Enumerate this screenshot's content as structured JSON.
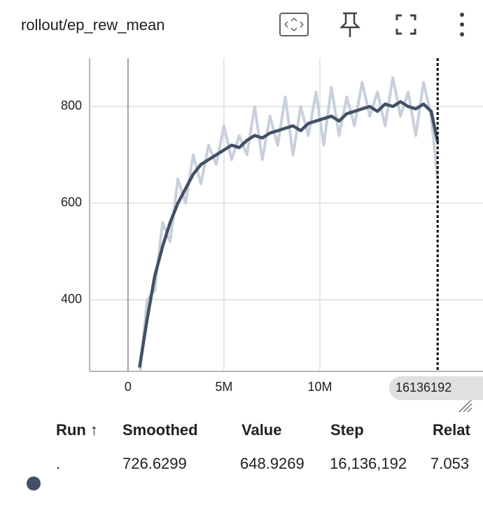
{
  "title": "rollout/ep_rew_mean",
  "chart_data": {
    "type": "line",
    "x": [
      600000,
      1000000,
      1400000,
      1800000,
      2200000,
      2600000,
      3000000,
      3400000,
      3800000,
      4200000,
      4600000,
      5000000,
      5400000,
      5800000,
      6200000,
      6600000,
      7000000,
      7400000,
      7800000,
      8200000,
      8600000,
      9000000,
      9400000,
      9800000,
      10200000,
      10600000,
      11000000,
      11400000,
      11800000,
      12200000,
      12600000,
      13000000,
      13400000,
      13800000,
      14200000,
      14600000,
      15000000,
      15400000,
      15800000,
      16136192
    ],
    "series": [
      {
        "color": "#c9d0dc",
        "values": [
          240,
          400,
          420,
          560,
          520,
          650,
          600,
          700,
          640,
          720,
          680,
          760,
          690,
          740,
          700,
          800,
          690,
          780,
          720,
          820,
          700,
          800,
          740,
          830,
          720,
          840,
          740,
          820,
          760,
          850,
          780,
          830,
          760,
          860,
          780,
          830,
          740,
          850,
          780,
          648.9269
        ]
      },
      {
        "color": "#425066",
        "values": [
          260,
          360,
          450,
          510,
          560,
          600,
          630,
          660,
          680,
          690,
          700,
          710,
          720,
          715,
          730,
          740,
          735,
          745,
          750,
          755,
          760,
          750,
          765,
          770,
          775,
          780,
          770,
          785,
          790,
          795,
          800,
          790,
          805,
          800,
          810,
          800,
          795,
          805,
          790,
          726.6299
        ]
      }
    ],
    "xlim": [
      -2000000,
      18500000
    ],
    "ylim": [
      252,
      900
    ],
    "xticks": [
      0,
      {
        "value": 5000000,
        "label": "5M"
      },
      {
        "value": 10000000,
        "label": "10M"
      }
    ],
    "yticks": [
      400,
      600,
      800
    ],
    "grid": true
  },
  "table": {
    "columns": [
      "Run ↑",
      "Smoothed",
      "Value",
      "Step",
      "Relat"
    ],
    "rows": [
      [
        ".",
        "726.6299",
        "648.9269",
        "16,136,192",
        "7.053"
      ]
    ]
  }
}
